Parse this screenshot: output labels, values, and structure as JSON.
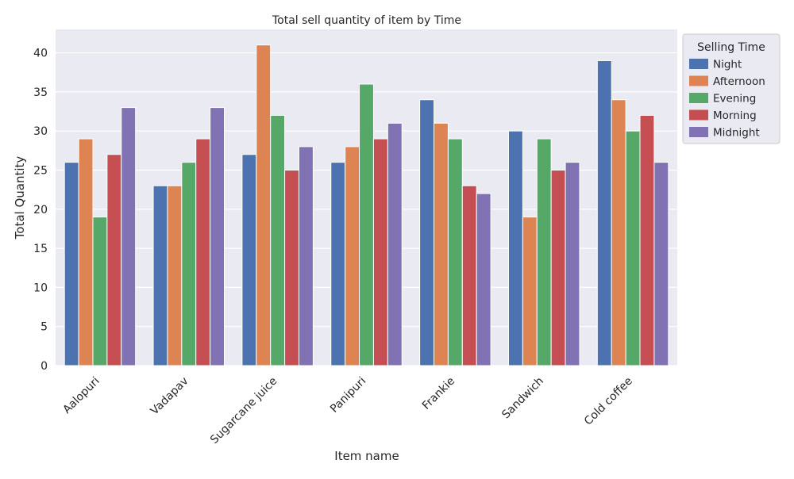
{
  "chart_data": {
    "type": "bar",
    "title": "Total sell quantity of item  by Time",
    "xlabel": "Item name",
    "ylabel": "Total Quantity",
    "categories": [
      "Aalopuri",
      "Vadapav",
      "Sugarcane juice",
      "Panipuri",
      "Frankie",
      "Sandwich",
      "Cold coffee"
    ],
    "ylim": [
      0,
      43
    ],
    "yticks": [
      0,
      5,
      10,
      15,
      20,
      25,
      30,
      35,
      40
    ],
    "grid": true,
    "x_tick_rotation": 45,
    "legend": {
      "title": "Selling Time",
      "placement": "outside-top-right"
    },
    "series": [
      {
        "name": "Night",
        "color": "#4c72b0",
        "values": [
          26,
          23,
          27,
          26,
          34,
          30,
          39
        ]
      },
      {
        "name": "Afternoon",
        "color": "#dd8452",
        "values": [
          29,
          23,
          41,
          28,
          31,
          19,
          34
        ]
      },
      {
        "name": "Evening",
        "color": "#55a868",
        "values": [
          19,
          26,
          32,
          36,
          29,
          29,
          30
        ]
      },
      {
        "name": "Morning",
        "color": "#c44e52",
        "values": [
          27,
          29,
          25,
          29,
          23,
          25,
          32
        ]
      },
      {
        "name": "Midnight",
        "color": "#8172b3",
        "values": [
          33,
          33,
          28,
          31,
          22,
          26,
          26
        ]
      }
    ]
  }
}
